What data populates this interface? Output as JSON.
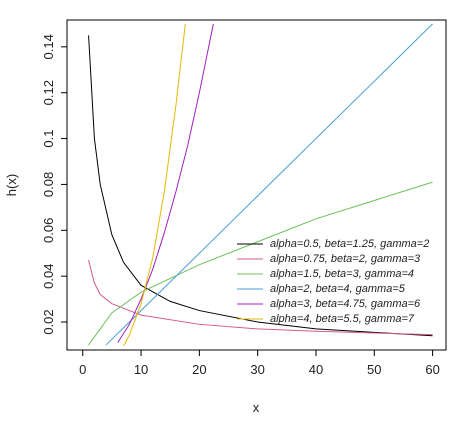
{
  "chart_data": {
    "type": "line",
    "x_label": "x",
    "y_label": "h(x)",
    "xlim": [
      -2.7,
      62.3
    ],
    "ylim": [
      0.0078,
      0.1517
    ],
    "xticks": [
      0,
      10,
      20,
      30,
      40,
      50,
      60
    ],
    "yticks": [
      0.02,
      0.04,
      0.06,
      0.08,
      0.1,
      0.12,
      0.14
    ],
    "series": [
      {
        "name": "alpha=0.5, beta=1.25, gamma=2",
        "color": "#000000",
        "x": [
          1,
          2,
          3,
          5,
          7,
          10,
          15,
          20,
          30,
          40,
          50,
          60
        ],
        "values": [
          0.145,
          0.1,
          0.08,
          0.058,
          0.046,
          0.036,
          0.029,
          0.025,
          0.02,
          0.017,
          0.0155,
          0.014
        ]
      },
      {
        "name": "alpha=0.75, beta=2, gamma=3",
        "color": "#d65a8a",
        "x": [
          1,
          2,
          3,
          5,
          10,
          20,
          30,
          40,
          50,
          60
        ],
        "values": [
          0.047,
          0.037,
          0.032,
          0.028,
          0.023,
          0.019,
          0.017,
          0.016,
          0.0152,
          0.0145
        ]
      },
      {
        "name": "alpha=1.5, beta=3, gamma=4",
        "color": "#6cc05a",
        "x": [
          1,
          5,
          10,
          20,
          30,
          40,
          50,
          60
        ],
        "values": [
          0.01,
          0.024,
          0.033,
          0.045,
          0.055,
          0.065,
          0.073,
          0.081
        ]
      },
      {
        "name": "alpha=2, beta=4, gamma=5",
        "color": "#4a9fd8",
        "x": [
          4,
          60
        ],
        "values": [
          0.01,
          0.15
        ]
      },
      {
        "name": "alpha=3, beta=4.75, gamma=6",
        "color": "#a020c0",
        "x": [
          6,
          8,
          10,
          12,
          14,
          16,
          18,
          20,
          22.4
        ],
        "values": [
          0.011,
          0.019,
          0.03,
          0.043,
          0.059,
          0.077,
          0.097,
          0.12,
          0.15
        ]
      },
      {
        "name": "alpha=4, beta=5.5, gamma=7",
        "color": "#e8b800",
        "x": [
          7,
          8,
          10,
          12,
          14,
          16,
          17.6
        ],
        "values": [
          0.0096,
          0.0143,
          0.028,
          0.048,
          0.077,
          0.115,
          0.15
        ]
      }
    ]
  }
}
